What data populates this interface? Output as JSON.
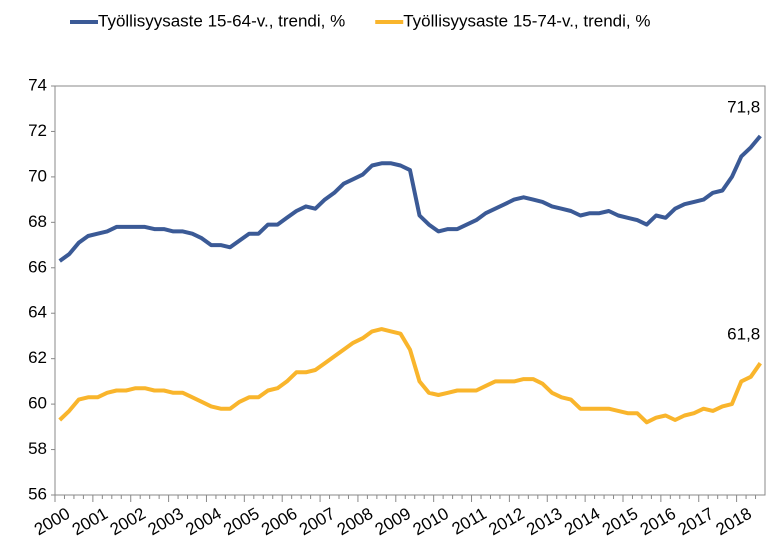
{
  "chart_data": {
    "type": "line",
    "categories": [
      "2000",
      null,
      null,
      null,
      "2001",
      null,
      null,
      null,
      "2002",
      null,
      null,
      null,
      "2003",
      null,
      null,
      null,
      "2004",
      null,
      null,
      null,
      "2005",
      null,
      null,
      null,
      "2006",
      null,
      null,
      null,
      "2007",
      null,
      null,
      null,
      "2008",
      null,
      null,
      null,
      "2009",
      null,
      null,
      null,
      "2010",
      null,
      null,
      null,
      "2011",
      null,
      null,
      null,
      "2012",
      null,
      null,
      null,
      "2013",
      null,
      null,
      null,
      "2014",
      null,
      null,
      null,
      "2015",
      null,
      null,
      null,
      "2016",
      null,
      null,
      null,
      "2017",
      null,
      null,
      null,
      "2018",
      null,
      null
    ],
    "series": [
      {
        "name": "Työllisyysaste 15-64-v., trendi, %",
        "color": "#3b5a96",
        "end_label": "71,8",
        "values": [
          66.3,
          66.6,
          67.1,
          67.4,
          67.5,
          67.6,
          67.8,
          67.8,
          67.8,
          67.8,
          67.7,
          67.7,
          67.6,
          67.6,
          67.5,
          67.3,
          67.0,
          67.0,
          66.9,
          67.2,
          67.5,
          67.5,
          67.9,
          67.9,
          68.2,
          68.5,
          68.7,
          68.6,
          69.0,
          69.3,
          69.7,
          69.9,
          70.1,
          70.5,
          70.6,
          70.6,
          70.5,
          70.3,
          68.3,
          67.9,
          67.6,
          67.7,
          67.7,
          67.9,
          68.1,
          68.4,
          68.6,
          68.8,
          69.0,
          69.1,
          69.0,
          68.9,
          68.7,
          68.6,
          68.5,
          68.3,
          68.4,
          68.4,
          68.5,
          68.3,
          68.2,
          68.1,
          67.9,
          68.3,
          68.2,
          68.6,
          68.8,
          68.9,
          69.0,
          69.3,
          69.4,
          70.0,
          70.9,
          71.3,
          71.8
        ]
      },
      {
        "name": "Työllisyysaste 15-74-v., trendi, %",
        "color": "#f9b52c",
        "end_label": "61,8",
        "values": [
          59.3,
          59.7,
          60.2,
          60.3,
          60.3,
          60.5,
          60.6,
          60.6,
          60.7,
          60.7,
          60.6,
          60.6,
          60.5,
          60.5,
          60.3,
          60.1,
          59.9,
          59.8,
          59.8,
          60.1,
          60.3,
          60.3,
          60.6,
          60.7,
          61.0,
          61.4,
          61.4,
          61.5,
          61.8,
          62.1,
          62.4,
          62.7,
          62.9,
          63.2,
          63.3,
          63.2,
          63.1,
          62.4,
          61.0,
          60.5,
          60.4,
          60.5,
          60.6,
          60.6,
          60.6,
          60.8,
          61.0,
          61.0,
          61.0,
          61.1,
          61.1,
          60.9,
          60.5,
          60.3,
          60.2,
          59.8,
          59.8,
          59.8,
          59.8,
          59.7,
          59.6,
          59.6,
          59.2,
          59.4,
          59.5,
          59.3,
          59.5,
          59.6,
          59.8,
          59.7,
          59.9,
          60.0,
          61.0,
          61.2,
          61.8
        ]
      }
    ],
    "ylim": [
      56,
      74
    ],
    "yticks": [
      56,
      58,
      60,
      62,
      64,
      66,
      68,
      70,
      72,
      74
    ],
    "grid": false,
    "legend": "top"
  }
}
